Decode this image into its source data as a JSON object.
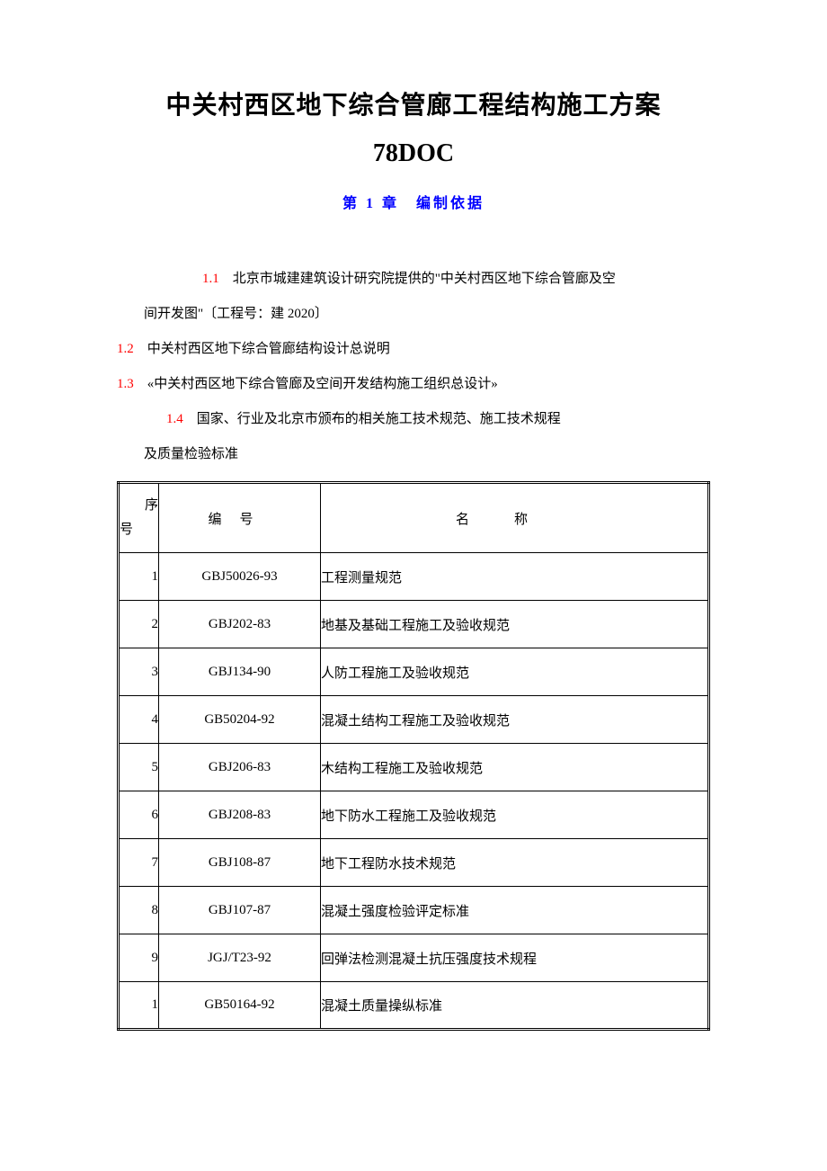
{
  "document": {
    "title_main": "中关村西区地下综合管廊工程结构施工方案",
    "title_sub": "78DOC",
    "chapter_title": "第 1 章　编制依据",
    "items": {
      "n1_1": "1.1",
      "t1_1a": "北京市城建建筑设计研究院提供的\"中关村西区地下综合管廊及空",
      "t1_1b": "间开发图\"〔工程号：建 2020〕",
      "n1_2": "1.2",
      "t1_2": "中关村西区地下综合管廊结构设计总说明",
      "n1_3": "1.3",
      "t1_3": "«中关村西区地下综合管廊及空间开发结构施工组织总设计»",
      "n1_4": "1.4",
      "t1_4a": "国家、行业及北京市颁布的相关施工技术规范、施工技术规程",
      "t1_4b": "及质量检验标准"
    },
    "table": {
      "header": {
        "seq_l1": "序",
        "seq_l2": "号",
        "code": "编号",
        "name": "名称"
      },
      "rows": [
        {
          "seq": "1",
          "code": "GBJ50026-93",
          "name": "工程测量规范"
        },
        {
          "seq": "2",
          "code": "GBJ202-83",
          "name": "地基及基础工程施工及验收规范"
        },
        {
          "seq": "3",
          "code": "GBJ134-90",
          "name": "人防工程施工及验收规范"
        },
        {
          "seq": "4",
          "code": "GB50204-92",
          "name": "混凝土结构工程施工及验收规范"
        },
        {
          "seq": "5",
          "code": "GBJ206-83",
          "name": "木结构工程施工及验收规范"
        },
        {
          "seq": "6",
          "code": "GBJ208-83",
          "name": "地下防水工程施工及验收规范"
        },
        {
          "seq": "7",
          "code": "GBJ108-87",
          "name": "地下工程防水技术规范"
        },
        {
          "seq": "8",
          "code": "GBJ107-87",
          "name": "混凝土强度检验评定标准"
        },
        {
          "seq": "9",
          "code": "JGJ/T23-92",
          "name": "回弹法检测混凝土抗压强度技术规程"
        },
        {
          "seq": "1",
          "code": "GB50164-92",
          "name": "混凝土质量操纵标准"
        }
      ]
    },
    "styling": {
      "title_color": "#000000",
      "chapter_color": "#0000ff",
      "item_number_color": "#ff0000",
      "background_color": "#ffffff",
      "table_border_color": "#000000",
      "title_fontsize": 28,
      "chapter_fontsize": 16,
      "body_fontsize": 15
    }
  }
}
